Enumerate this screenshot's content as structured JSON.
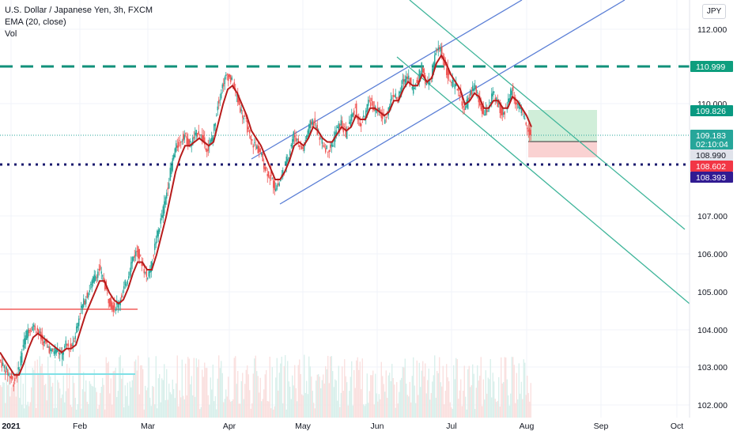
{
  "legend": {
    "title": "U.S. Dollar / Japanese Yen, 3h, FXCM",
    "indicator": "EMA (20, close)",
    "volume": "Vol"
  },
  "currency": "JPY",
  "chart_data": {
    "type": "line",
    "subtype": "candlestick-with-ema",
    "x_ticks": [
      "2021",
      "Feb",
      "Mar",
      "Apr",
      "May",
      "Jun",
      "Jul",
      "Aug",
      "Sep",
      "Oct"
    ],
    "y_ticks": [
      "102.000",
      "103.000",
      "104.000",
      "105.000",
      "106.000",
      "107.000",
      "110.000",
      "112.000"
    ],
    "ylim": [
      101.8,
      112.6
    ],
    "x": [
      0,
      6,
      12,
      18,
      24,
      30,
      36,
      42,
      48,
      54,
      60,
      66,
      72,
      78,
      84,
      90,
      96,
      102,
      108,
      114,
      120,
      126,
      132,
      138,
      144,
      150,
      156,
      162,
      168,
      174,
      180,
      186,
      192,
      198,
      204,
      210,
      216,
      222,
      228,
      234,
      240,
      246,
      252,
      258,
      264,
      270,
      276,
      282,
      288,
      294,
      300,
      306,
      312,
      318,
      324,
      330,
      336,
      342,
      348,
      354,
      360,
      366,
      372,
      378,
      384,
      390,
      396,
      402,
      408,
      414,
      420,
      426,
      432,
      438,
      444,
      450,
      456,
      462,
      468,
      474,
      480,
      486,
      492,
      498,
      504,
      510,
      516,
      522,
      528,
      534,
      540,
      546,
      552,
      558,
      564,
      570,
      576,
      582,
      588,
      594,
      600,
      606,
      612,
      618,
      624,
      630,
      636,
      642,
      648,
      654,
      660,
      666,
      672
    ],
    "series": [
      {
        "values": [
          103.2,
          103.0,
          102.8,
          102.6,
          102.9,
          103.6,
          104.0,
          104.1,
          104.0,
          103.7,
          103.6,
          103.4,
          103.5,
          103.3,
          103.6,
          103.5,
          103.9,
          104.5,
          104.8,
          105.1,
          105.4,
          105.6,
          105.3,
          104.8,
          104.6,
          104.7,
          105.0,
          105.4,
          105.9,
          106.1,
          105.8,
          105.4,
          105.7,
          106.4,
          106.9,
          107.5,
          108.2,
          108.8,
          109.0,
          109.2,
          108.9,
          109.1,
          109.3,
          109.0,
          108.8,
          109.2,
          110.0,
          110.5,
          110.8,
          110.6,
          110.2,
          109.8,
          109.5,
          109.0,
          108.9,
          108.7,
          108.3,
          108.1,
          107.8,
          107.9,
          108.3,
          108.7,
          109.2,
          109.0,
          108.8,
          109.3,
          109.6,
          109.3,
          109.0,
          108.8,
          108.9,
          109.3,
          109.5,
          109.2,
          109.6,
          109.9,
          109.4,
          109.7,
          110.1,
          109.9,
          109.8,
          109.6,
          109.9,
          110.3,
          110.1,
          110.6,
          110.8,
          110.4,
          110.6,
          111.0,
          110.5,
          110.7,
          111.4,
          111.5,
          111.0,
          110.6,
          110.5,
          110.3,
          109.8,
          110.2,
          110.5,
          110.1,
          109.7,
          109.9,
          110.3,
          110.0,
          109.7,
          110.0,
          110.4,
          110.0,
          109.8,
          109.5,
          109.2
        ]
      },
      {
        "values": [
          103.4,
          103.2,
          103.0,
          102.8,
          102.8,
          103.1,
          103.5,
          103.8,
          103.9,
          103.8,
          103.7,
          103.6,
          103.5,
          103.4,
          103.5,
          103.5,
          103.6,
          104.0,
          104.4,
          104.7,
          105.0,
          105.3,
          105.3,
          105.0,
          104.8,
          104.7,
          104.8,
          105.1,
          105.5,
          105.8,
          105.8,
          105.6,
          105.6,
          106.0,
          106.5,
          107.0,
          107.6,
          108.2,
          108.6,
          108.9,
          108.9,
          109.0,
          109.1,
          109.0,
          108.9,
          109.0,
          109.5,
          110.0,
          110.4,
          110.5,
          110.3,
          110.0,
          109.7,
          109.3,
          109.1,
          108.9,
          108.6,
          108.3,
          108.0,
          108.0,
          108.2,
          108.5,
          108.9,
          109.0,
          108.9,
          109.1,
          109.4,
          109.3,
          109.1,
          109.0,
          109.0,
          109.2,
          109.4,
          109.3,
          109.4,
          109.7,
          109.6,
          109.6,
          109.9,
          109.9,
          109.8,
          109.7,
          109.8,
          110.1,
          110.1,
          110.4,
          110.6,
          110.5,
          110.5,
          110.8,
          110.6,
          110.7,
          111.1,
          111.3,
          111.1,
          110.8,
          110.6,
          110.4,
          110.0,
          110.1,
          110.3,
          110.2,
          109.9,
          109.9,
          110.1,
          110.1,
          109.9,
          109.9,
          110.2,
          110.1,
          109.9,
          109.7,
          109.4
        ]
      }
    ],
    "price_tags": [
      {
        "value": "110.999",
        "color": "#0e9e7e"
      },
      {
        "value": "109.826",
        "color": "#089981"
      },
      {
        "value": "109.183",
        "color": "#26a69a"
      },
      {
        "value": "02:10:04",
        "color": "#26a69a"
      },
      {
        "value": "108.990",
        "color": "#e0e3eb"
      },
      {
        "value": "108.602",
        "color": "#f23645"
      },
      {
        "value": "108.393",
        "color": "#311b92"
      }
    ],
    "colors": {
      "ema": "#b71c1c",
      "candle_up": "#26a69a",
      "candle_down": "#ef5350",
      "channel_blue": "#5b7fd6",
      "channel_green": "#3fb59a",
      "dashed_green": "#11907a",
      "dotted_navy": "#1a1a6e",
      "support_red": "#f25f5c",
      "support_cyan": "#7fe0e6",
      "target_zone": "#c8ebd2",
      "stop_zone": "#f9cdcd"
    }
  }
}
